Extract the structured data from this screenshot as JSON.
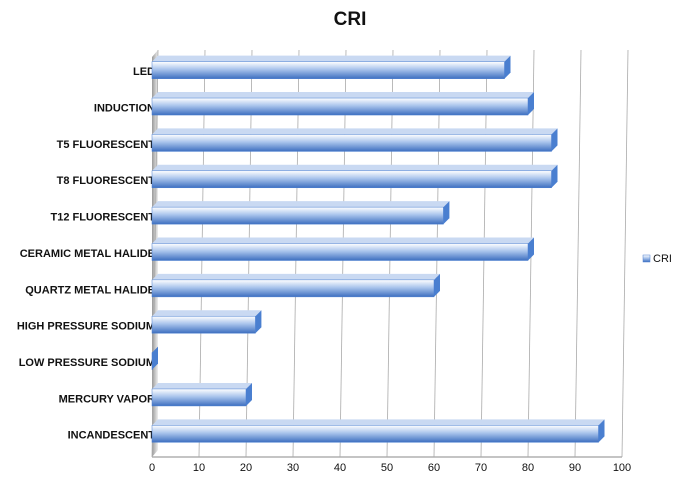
{
  "chart_data": {
    "type": "bar",
    "orientation": "horizontal",
    "title": "CRI",
    "categories": [
      "LED",
      "INDUCTION",
      "T5 FLUORESCENT",
      "T8 FLUORESCENT",
      "T12 FLUORESCENT",
      "CERAMIC METAL HALIDE",
      "QUARTZ METAL HALIDE",
      "HIGH PRESSURE SODIUM",
      "LOW PRESSURE SODIUM",
      "MERCURY VAPOR",
      "INCANDESCENT"
    ],
    "series": [
      {
        "name": "CRI",
        "color": "#4a7fd0",
        "values": [
          75,
          80,
          85,
          85,
          62,
          80,
          60,
          22,
          0,
          20,
          95
        ]
      }
    ],
    "xlim": [
      0,
      100
    ],
    "xticks": [
      0,
      10,
      20,
      30,
      40,
      50,
      60,
      70,
      80,
      90,
      100
    ],
    "grid": true,
    "legend": "right"
  }
}
